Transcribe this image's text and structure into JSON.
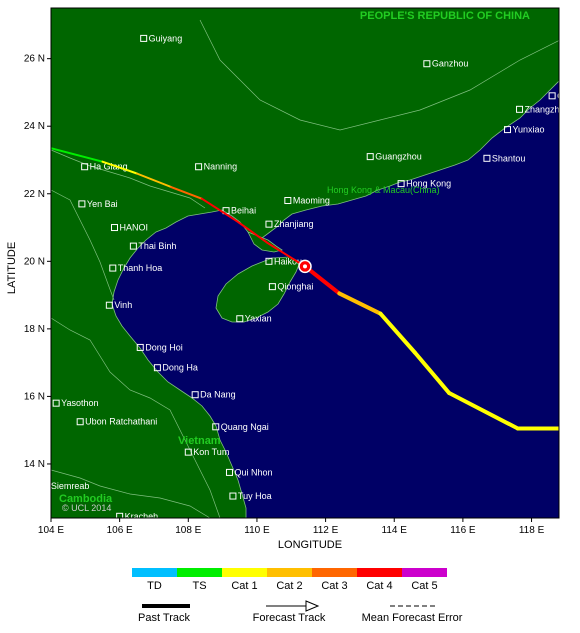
{
  "map": {
    "country_label": "PEOPLE'S REPUBLIC OF CHINA",
    "region_labels": [
      {
        "text": "Hong Kong & Macau(China)"
      },
      {
        "text": "Vietnam"
      },
      {
        "text": "Cambodia"
      }
    ],
    "copyright": "© UCL 2014",
    "x_axis_title": "LONGITUDE",
    "y_axis_title": "LATITUDE",
    "lon_ticks": [
      "104 E",
      "106 E",
      "108 E",
      "110 E",
      "112 E",
      "114 E",
      "116 E",
      "118 E"
    ],
    "lon_values": [
      104,
      106,
      108,
      110,
      112,
      114,
      116,
      118
    ],
    "lat_ticks": [
      "14 N",
      "16 N",
      "18 N",
      "20 N",
      "22 N",
      "24 N",
      "26 N"
    ],
    "lat_values": [
      14,
      16,
      18,
      20,
      22,
      24,
      26
    ],
    "lon_range": [
      104,
      118.8
    ],
    "lat_range": [
      12.4,
      27.5
    ],
    "colors": {
      "sea": "#000066",
      "land": "#006600",
      "border": "#7fbf7f",
      "country_label": "#22cc22"
    },
    "cities": [
      {
        "name": "Guiyang",
        "lon": 106.7,
        "lat": 26.6
      },
      {
        "name": "Ganzhou",
        "lon": 114.95,
        "lat": 25.85
      },
      {
        "name": "Quanzhou",
        "lon": 118.6,
        "lat": 24.9
      },
      {
        "name": "Zhangzhou",
        "lon": 117.65,
        "lat": 24.5
      },
      {
        "name": "Yunxiao",
        "lon": 117.3,
        "lat": 23.9
      },
      {
        "name": "Guangzhou",
        "lon": 113.3,
        "lat": 23.1
      },
      {
        "name": "Shantou",
        "lon": 116.7,
        "lat": 23.05
      },
      {
        "name": "Hong Kong",
        "lon": 114.2,
        "lat": 22.3
      },
      {
        "name": "Nanning",
        "lon": 108.3,
        "lat": 22.8
      },
      {
        "name": "Ha Giang",
        "lon": 104.98,
        "lat": 22.8
      },
      {
        "name": "Maoming",
        "lon": 110.9,
        "lat": 21.8
      },
      {
        "name": "Beihai",
        "lon": 109.1,
        "lat": 21.5
      },
      {
        "name": "Zhanjiang",
        "lon": 110.35,
        "lat": 21.1
      },
      {
        "name": "Yen Bai",
        "lon": 104.9,
        "lat": 21.7
      },
      {
        "name": "HANOI",
        "lon": 105.85,
        "lat": 21.0
      },
      {
        "name": "Thai Binh",
        "lon": 106.4,
        "lat": 20.45
      },
      {
        "name": "Haikou",
        "lon": 110.35,
        "lat": 20.0
      },
      {
        "name": "Thanh Hoa",
        "lon": 105.8,
        "lat": 19.8
      },
      {
        "name": "Qionghai",
        "lon": 110.45,
        "lat": 19.25
      },
      {
        "name": "Vinh",
        "lon": 105.7,
        "lat": 18.7
      },
      {
        "name": "Yaxian",
        "lon": 109.5,
        "lat": 18.3
      },
      {
        "name": "Dong Hoi",
        "lon": 106.6,
        "lat": 17.45
      },
      {
        "name": "Dong Ha",
        "lon": 107.1,
        "lat": 16.85
      },
      {
        "name": "Da Nang",
        "lon": 108.2,
        "lat": 16.05
      },
      {
        "name": "Yasothon",
        "lon": 104.15,
        "lat": 15.8
      },
      {
        "name": "Ubon Ratchathani",
        "lon": 104.85,
        "lat": 15.25
      },
      {
        "name": "Quang Ngai",
        "lon": 108.8,
        "lat": 15.1
      },
      {
        "name": "Kon Tum",
        "lon": 108.0,
        "lat": 14.35
      },
      {
        "name": "Qui Nhon",
        "lon": 109.2,
        "lat": 13.75
      },
      {
        "name": "Siemreab",
        "lon": 103.85,
        "lat": 13.35
      },
      {
        "name": "Tuy Hoa",
        "lon": 109.3,
        "lat": 13.05
      },
      {
        "name": "Kracheh",
        "lon": 106.0,
        "lat": 12.45
      }
    ],
    "current_position": {
      "lon": 111.4,
      "lat": 19.85
    }
  },
  "chart_data": {
    "type": "line",
    "past_track": [
      {
        "lon": 104.0,
        "lat": 23.35,
        "category": "TS"
      },
      {
        "lon": 105.5,
        "lat": 22.95,
        "category": "TS"
      },
      {
        "lon": 106.5,
        "lat": 22.6,
        "category": "Cat 1"
      },
      {
        "lon": 107.5,
        "lat": 22.2,
        "category": "Cat 2"
      },
      {
        "lon": 108.4,
        "lat": 21.85,
        "category": "Cat 3"
      },
      {
        "lon": 109.4,
        "lat": 21.2,
        "category": "Cat 4"
      },
      {
        "lon": 110.3,
        "lat": 20.55,
        "category": "Cat 4"
      },
      {
        "lon": 111.4,
        "lat": 19.85,
        "category": "Cat 4"
      }
    ],
    "forecast_track": [
      {
        "lon": 111.4,
        "lat": 19.85,
        "category": "Cat 4"
      },
      {
        "lon": 112.4,
        "lat": 19.05,
        "category": "Cat 4"
      },
      {
        "lon": 113.6,
        "lat": 18.45,
        "category": "Cat 2"
      },
      {
        "lon": 114.6,
        "lat": 17.3,
        "category": "Cat 1"
      },
      {
        "lon": 115.6,
        "lat": 16.1,
        "category": "Cat 1"
      },
      {
        "lon": 117.6,
        "lat": 15.05,
        "category": "Cat 1"
      },
      {
        "lon": 118.8,
        "lat": 15.05,
        "category": "Cat 1"
      }
    ],
    "xlabel": "LONGITUDE",
    "ylabel": "LATITUDE",
    "xlim": [
      104,
      118.8
    ],
    "ylim": [
      12.4,
      27.5
    ]
  },
  "legend": {
    "categories": [
      {
        "label": "TD",
        "color": "#00bfff"
      },
      {
        "label": "TS",
        "color": "#00ee00"
      },
      {
        "label": "Cat 1",
        "color": "#ffff00"
      },
      {
        "label": "Cat 2",
        "color": "#ffbf00"
      },
      {
        "label": "Cat 3",
        "color": "#ff6600"
      },
      {
        "label": "Cat 4",
        "color": "#ff0000"
      },
      {
        "label": "Cat 5",
        "color": "#cc00cc"
      }
    ],
    "past_track_label": "Past Track",
    "forecast_track_label": "Forecast Track",
    "error_label": "Mean Forecast Error"
  }
}
